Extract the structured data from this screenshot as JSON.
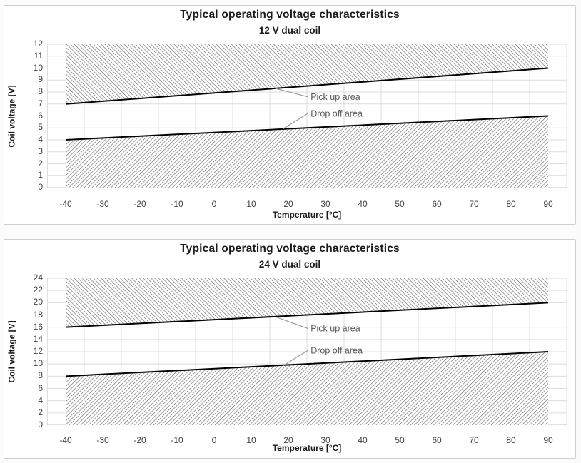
{
  "colors": {
    "hatch": "#5a5a5a",
    "grid": "#dcdcdc",
    "axis": "#c2c2c2",
    "boundary": "#000000",
    "leader": "#9a9a9a",
    "annotation_text": "#595959",
    "title_text": "#1a1a1a",
    "tick_text": "#3f3f3f",
    "panel_border": "#cfcfcf",
    "panel_bg": "#ffffff"
  },
  "charts": [
    {
      "title": "Typical operating voltage characteristics",
      "subtitle": "12 V dual coil",
      "xlabel": "Temperature [°C]",
      "ylabel": "Coil voltage [V]",
      "chart_data": {
        "type": "area",
        "x_ticks": [
          -40,
          -30,
          -20,
          -10,
          0,
          10,
          20,
          30,
          40,
          50,
          60,
          70,
          80,
          90
        ],
        "y_ticks": [
          0,
          1,
          2,
          3,
          4,
          5,
          6,
          7,
          8,
          9,
          10,
          11,
          12
        ],
        "ylim": [
          0,
          12
        ],
        "x_range": [
          -40,
          90
        ],
        "grid": true,
        "series": [
          {
            "name": "Pick up area",
            "x": [
              -40,
              90
            ],
            "y": [
              7,
              10
            ],
            "fill_to": 12,
            "hatch": "\\"
          },
          {
            "name": "Drop off area",
            "x": [
              -40,
              90
            ],
            "y": [
              4,
              6
            ],
            "fill_to": 0,
            "hatch": "/"
          }
        ],
        "annotations": [
          {
            "label": "Pick up area",
            "text_x": 26,
            "text_y": 7.6,
            "anchor_x": 16.5,
            "anchor_y": 8.3
          },
          {
            "label": "Drop off area",
            "text_x": 26,
            "text_y": 6.2,
            "anchor_x": 18.5,
            "anchor_y": 4.9
          }
        ]
      }
    },
    {
      "title": "Typical operating voltage characteristics",
      "subtitle": "24 V dual coil",
      "xlabel": "Temperature [°C]",
      "ylabel": "Coil voltage [V]",
      "chart_data": {
        "type": "area",
        "x_ticks": [
          -40,
          -30,
          -20,
          -10,
          0,
          10,
          20,
          30,
          40,
          50,
          60,
          70,
          80,
          90
        ],
        "y_ticks": [
          0,
          2,
          4,
          6,
          8,
          10,
          12,
          14,
          16,
          18,
          20,
          22,
          24
        ],
        "ylim": [
          0,
          24
        ],
        "x_range": [
          -40,
          90
        ],
        "grid": true,
        "series": [
          {
            "name": "Pick up area",
            "x": [
              -40,
              90
            ],
            "y": [
              16,
              20
            ],
            "fill_to": 24,
            "hatch": "\\"
          },
          {
            "name": "Drop off area",
            "x": [
              -40,
              90
            ],
            "y": [
              8,
              12
            ],
            "fill_to": 0,
            "hatch": "/"
          }
        ],
        "annotations": [
          {
            "label": "Pick up area",
            "text_x": 26,
            "text_y": 15.8,
            "anchor_x": 16.5,
            "anchor_y": 17.7
          },
          {
            "label": "Drop off area",
            "text_x": 26,
            "text_y": 12.2,
            "anchor_x": 18.5,
            "anchor_y": 9.7
          }
        ]
      }
    }
  ]
}
